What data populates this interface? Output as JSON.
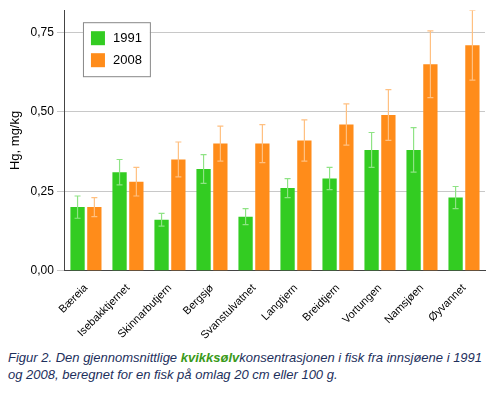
{
  "chart_data": {
    "type": "bar",
    "y_label": "Hg, mg/kg",
    "caption": "Figur 2. Den gjennomsnittlige kvikksølvkonsentrasjonen i fisk fra innsjøene i 1991 og 2008, beregnet for en fisk på omlag 20 cm eller 100 g.",
    "caption_highlight": "kvikksølv",
    "categories": [
      "Bæreia",
      "Isebakktjernet",
      "Skinnarbutjern",
      "Bergsjø",
      "Svanstulvatnet",
      "Langtjern",
      "Breidtjern",
      "Vortungen",
      "Namsjøen",
      "Øyvannet"
    ],
    "series": [
      {
        "name": "1991",
        "color": "#33cc22",
        "values": [
          0.2,
          0.31,
          0.16,
          0.32,
          0.17,
          0.26,
          0.29,
          0.38,
          0.38,
          0.23
        ],
        "errors": [
          0.035,
          0.04,
          0.02,
          0.045,
          0.025,
          0.03,
          0.035,
          0.055,
          0.07,
          0.035
        ]
      },
      {
        "name": "2008",
        "color": "#ff8c1a",
        "values": [
          0.2,
          0.28,
          0.35,
          0.4,
          0.4,
          0.41,
          0.46,
          0.49,
          0.65,
          0.71
        ],
        "errors": [
          0.03,
          0.045,
          0.055,
          0.055,
          0.06,
          0.065,
          0.065,
          0.08,
          0.105,
          0.11
        ]
      }
    ],
    "ylim": [
      0,
      0.82
    ],
    "yticks": [
      {
        "value": 0,
        "label": "0,00"
      },
      {
        "value": 0.25,
        "label": "0,25"
      },
      {
        "value": 0.5,
        "label": "0,50"
      },
      {
        "value": 0.75,
        "label": "0,75"
      }
    ],
    "grid": true,
    "legend": "upper left"
  }
}
